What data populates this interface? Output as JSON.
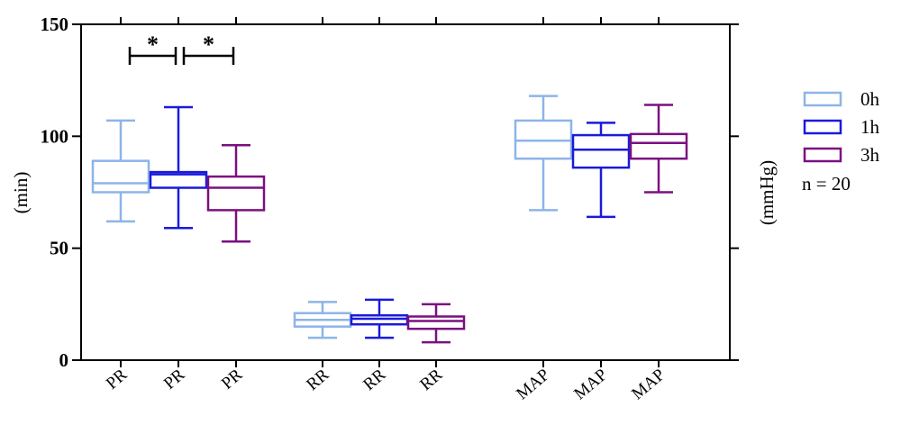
{
  "chart_data": {
    "type": "box",
    "title": "",
    "ylabel_left": "(min)",
    "ylabel_right": "(mmHg)",
    "ylim": [
      0,
      150
    ],
    "yticks": [
      "0",
      "50",
      "100",
      "150"
    ],
    "groups": [
      "PR",
      "PR",
      "PR",
      "RR",
      "RR",
      "RR",
      "MAP",
      "MAP",
      "MAP"
    ],
    "series": [
      {
        "name": "0h",
        "color": "#8db4e8",
        "boxes": [
          {
            "group": "PR",
            "min": 62,
            "q1": 75,
            "median": 79,
            "q3": 89,
            "max": 107
          },
          {
            "group": "RR",
            "min": 10,
            "q1": 15,
            "median": 18,
            "q3": 21,
            "max": 26
          },
          {
            "group": "MAP",
            "min": 67,
            "q1": 90,
            "median": 98,
            "q3": 107,
            "max": 118
          }
        ]
      },
      {
        "name": "1h",
        "color": "#1a1adc",
        "boxes": [
          {
            "group": "PR",
            "min": 59,
            "q1": 77,
            "median": 83,
            "q3": 84,
            "max": 113
          },
          {
            "group": "RR",
            "min": 10,
            "q1": 16,
            "median": 18.5,
            "q3": 20,
            "max": 27
          },
          {
            "group": "MAP",
            "min": 64,
            "q1": 86,
            "median": 94,
            "q3": 100.5,
            "max": 106
          }
        ]
      },
      {
        "name": "3h",
        "color": "#7a1080",
        "boxes": [
          {
            "group": "PR",
            "min": 53,
            "q1": 67,
            "median": 77,
            "q3": 82,
            "max": 96
          },
          {
            "group": "RR",
            "min": 8,
            "q1": 14,
            "median": 17.5,
            "q3": 19.5,
            "max": 25
          },
          {
            "group": "MAP",
            "min": 75,
            "q1": 90,
            "median": 97,
            "q3": 101,
            "max": 114
          }
        ]
      }
    ],
    "significance": [
      {
        "between": [
          "PR 0h",
          "PR 1h"
        ],
        "label": "*"
      },
      {
        "between": [
          "PR 1h",
          "PR 3h"
        ],
        "label": "*"
      }
    ],
    "legend": {
      "placement": "right",
      "entries": [
        "0h",
        "1h",
        "3h"
      ],
      "note": "n = 20"
    }
  }
}
